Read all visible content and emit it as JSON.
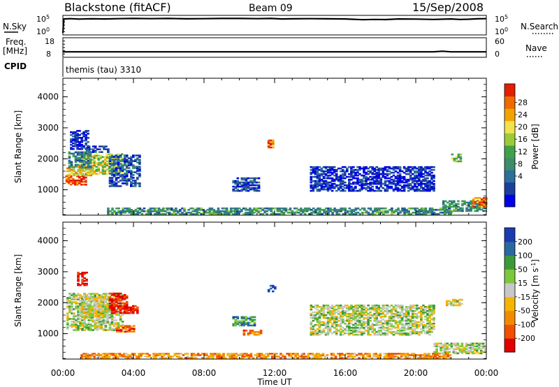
{
  "header": {
    "title": "Blackstone (fitACF)",
    "beam": "Beam 09",
    "date": "15/Sep/2008"
  },
  "mini_panels": {
    "nsky": {
      "left_label": "N.Sky",
      "left_ticks": [
        "10^5",
        "10^0"
      ],
      "right_ticks": [
        "10^5",
        "10^0"
      ],
      "right_label": "N.Search",
      "series": [
        {
          "name": "N.Sky",
          "x": [
            0,
            0.05,
            0.1,
            0.4,
            0.9,
            1.6,
            2.4,
            3.2,
            4.0,
            5.0,
            6.0,
            7.0,
            8.0,
            9.0,
            10.0,
            11.0,
            11.8,
            12.4,
            13.0,
            14.0,
            15.0,
            16.0,
            17.0,
            17.6,
            18.3,
            19.0,
            20.0,
            21.0,
            22.0,
            22.5,
            23.0,
            23.5,
            24.0
          ],
          "y": [
            0.2,
            4.6,
            4.75,
            4.85,
            4.7,
            4.8,
            4.75,
            4.85,
            4.9,
            4.85,
            4.9,
            4.8,
            4.85,
            4.9,
            4.9,
            4.85,
            4.9,
            4.75,
            4.8,
            4.85,
            4.8,
            4.75,
            4.5,
            4.6,
            4.55,
            4.75,
            4.7,
            4.6,
            4.75,
            4.6,
            4.65,
            4.8,
            4.85
          ]
        }
      ]
    },
    "freq": {
      "left_label": "Freq.",
      "unit_label": "[MHz]",
      "left_ticks": [
        "18",
        "8"
      ],
      "right_ticks": [
        "60",
        "0"
      ],
      "right_label": "Nave",
      "series": [
        {
          "name": "Freq.",
          "x": [
            0,
            0.1,
            21.0,
            21.5,
            22.0,
            24.0
          ],
          "y": [
            10.2,
            10.2,
            10.2,
            10.6,
            10.2,
            10.2
          ]
        }
      ]
    },
    "cpid": {
      "label": "CPID",
      "text": "themis (tau) 3310"
    }
  },
  "chart_data": [
    {
      "type": "heatmap",
      "quantity": "power",
      "ylabel": "Slant Range [km]",
      "yticks": [
        1000,
        2000,
        3000,
        4000
      ],
      "ylim": [
        180,
        4600
      ],
      "xlim": [
        0,
        24
      ],
      "colorbar": {
        "label": "Power [dB]",
        "ticks": [
          "28",
          "24",
          "20",
          "16",
          "12",
          "8",
          "4"
        ],
        "colors": [
          "#0000e6",
          "#1a3f9e",
          "#2e6e9a",
          "#3c8d6a",
          "#3fa24a",
          "#9ccb3a",
          "#f0e24b",
          "#f2a200",
          "#ef6a00",
          "#e02000"
        ]
      },
      "regions": [
        {
          "t": [
            0.15,
            1.3
          ],
          "r": [
            1150,
            1450
          ],
          "level": 0.95
        },
        {
          "t": [
            0.2,
            1.7
          ],
          "r": [
            1450,
            1800
          ],
          "level": 0.7
        },
        {
          "t": [
            1.0,
            3.4
          ],
          "r": [
            1500,
            2150
          ],
          "level": 0.6
        },
        {
          "t": [
            0.3,
            1.6
          ],
          "r": [
            1700,
            2200
          ],
          "level": 0.3
        },
        {
          "t": [
            2.6,
            4.3
          ],
          "r": [
            1100,
            2100
          ],
          "level": 0.2
        },
        {
          "t": [
            1.3,
            2.6
          ],
          "r": [
            2200,
            2400
          ],
          "level": 0.15
        },
        {
          "t": [
            0.4,
            1.4
          ],
          "r": [
            2300,
            2900
          ],
          "level": 0.1
        },
        {
          "t": [
            9.6,
            11.1
          ],
          "r": [
            950,
            1400
          ],
          "level": 0.15
        },
        {
          "t": [
            11.6,
            11.9
          ],
          "r": [
            2350,
            2600
          ],
          "level": 0.85
        },
        {
          "t": [
            14.0,
            21.0
          ],
          "r": [
            950,
            1750
          ],
          "level": 0.1
        },
        {
          "t": [
            22.0,
            22.6
          ],
          "r": [
            1900,
            2150
          ],
          "level": 0.45
        },
        {
          "t": [
            21.5,
            24.0
          ],
          "r": [
            300,
            650
          ],
          "level": 0.35
        },
        {
          "t": [
            23.2,
            24.0
          ],
          "r": [
            450,
            750
          ],
          "level": 0.85
        },
        {
          "t": [
            2.5,
            22.0
          ],
          "r": [
            200,
            400
          ],
          "level": 0.35
        }
      ]
    },
    {
      "type": "heatmap",
      "quantity": "velocity",
      "ylabel": "Slant Range [km]",
      "yticks": [
        1000,
        2000,
        3000,
        4000
      ],
      "ylim": [
        180,
        4600
      ],
      "xlim": [
        0,
        24
      ],
      "xticks": [
        "00:00",
        "04:00",
        "08:00",
        "12:00",
        "16:00",
        "20:00",
        "00:00"
      ],
      "xlabel": "Time UT",
      "colorbar": {
        "label": "Velocity [m s^-1]",
        "ticks": [
          "200",
          "100",
          "50",
          "15",
          "-15",
          "-50",
          "-100",
          "-200"
        ],
        "colors": [
          "#e00000",
          "#f05000",
          "#f28a00",
          "#f5b400",
          "#c8c8c8",
          "#7cc83c",
          "#3a9a3a",
          "#2a68a0",
          "#1a3cb0"
        ]
      },
      "regions": [
        {
          "t": [
            0.2,
            3.4
          ],
          "r": [
            1100,
            2300
          ],
          "level": 0.55
        },
        {
          "t": [
            1.0,
            2.6
          ],
          "r": [
            1500,
            2200
          ],
          "level": 0.5
        },
        {
          "t": [
            2.6,
            3.6
          ],
          "r": [
            1650,
            2300
          ],
          "level": 0.05
        },
        {
          "t": [
            3.2,
            4.2
          ],
          "r": [
            1650,
            1900
          ],
          "level": 0.05
        },
        {
          "t": [
            0.8,
            1.4
          ],
          "r": [
            2550,
            3000
          ],
          "level": 0.05
        },
        {
          "t": [
            3.0,
            4.0
          ],
          "r": [
            1050,
            1250
          ],
          "level": 0.2
        },
        {
          "t": [
            9.6,
            10.8
          ],
          "r": [
            1250,
            1550
          ],
          "level": 0.75
        },
        {
          "t": [
            10.2,
            11.2
          ],
          "r": [
            950,
            1100
          ],
          "level": 0.25
        },
        {
          "t": [
            11.6,
            12.0
          ],
          "r": [
            2350,
            2600
          ],
          "level": 0.95
        },
        {
          "t": [
            14.0,
            21.0
          ],
          "r": [
            950,
            1900
          ],
          "level": 0.55
        },
        {
          "t": [
            21.7,
            22.6
          ],
          "r": [
            1900,
            2100
          ],
          "level": 0.5
        },
        {
          "t": [
            21.0,
            24.0
          ],
          "r": [
            350,
            700
          ],
          "level": 0.55
        },
        {
          "t": [
            1.0,
            22.0
          ],
          "r": [
            200,
            350
          ],
          "level": 0.3
        }
      ]
    }
  ]
}
